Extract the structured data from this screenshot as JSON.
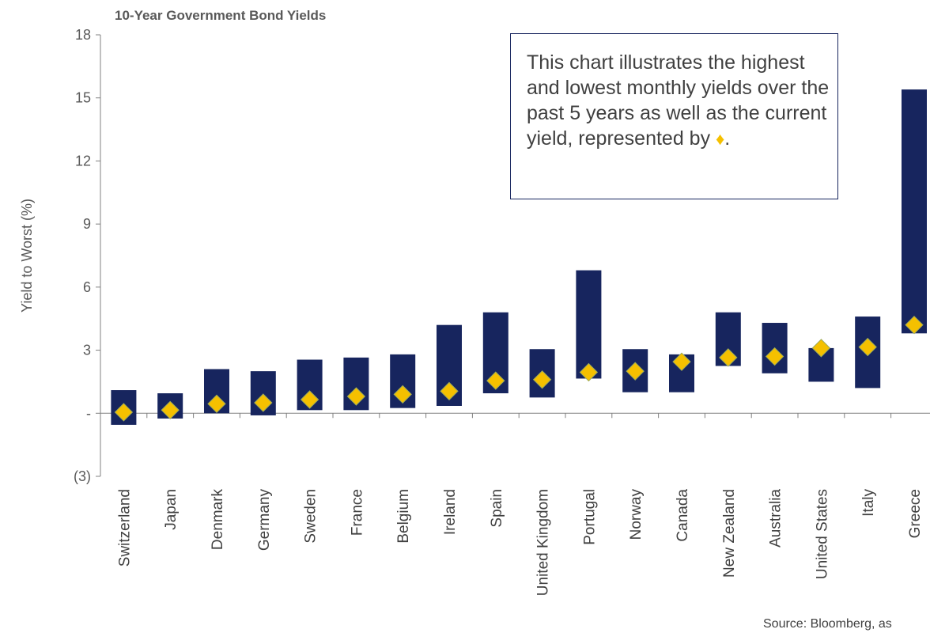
{
  "chart_data": {
    "type": "bar",
    "title": "10-Year Government Bond Yields",
    "ylabel": "Yield to Worst (%)",
    "xlabel": "",
    "ylim": [
      -3,
      18
    ],
    "yticks": [
      18,
      15,
      12,
      9,
      6,
      3,
      0,
      -3
    ],
    "ytick_labels": [
      "18",
      "15",
      "12",
      "9",
      "6",
      "3",
      "-",
      "(3)"
    ],
    "grid": false,
    "categories": [
      "Switzerland",
      "Japan",
      "Denmark",
      "Germany",
      "Sweden",
      "France",
      "Belgium",
      "Ireland",
      "Spain",
      "United Kingdom",
      "Portugal",
      "Norway",
      "Canada",
      "New Zealand",
      "Australia",
      "United States",
      "Italy",
      "Greece"
    ],
    "series": [
      {
        "kind": "range_high",
        "values": [
          1.1,
          0.95,
          2.1,
          2.0,
          2.55,
          2.65,
          2.8,
          4.2,
          4.8,
          3.05,
          6.8,
          3.05,
          2.8,
          4.8,
          4.3,
          3.1,
          4.6,
          15.4
        ]
      },
      {
        "kind": "range_low",
        "values": [
          -0.55,
          -0.25,
          0.0,
          -0.1,
          0.15,
          0.15,
          0.25,
          0.35,
          0.95,
          0.75,
          1.65,
          1.0,
          1.0,
          2.25,
          1.9,
          1.5,
          1.2,
          3.8
        ]
      },
      {
        "kind": "current",
        "values": [
          0.05,
          0.15,
          0.45,
          0.5,
          0.65,
          0.8,
          0.9,
          1.05,
          1.55,
          1.6,
          1.95,
          2.0,
          2.45,
          2.65,
          2.7,
          3.1,
          3.15,
          4.2
        ]
      }
    ],
    "colors": {
      "bar": "#17255E",
      "diamond": "#F5C000",
      "axis": "#808080",
      "text": "#595959"
    }
  },
  "note": {
    "text": "This chart illustrates the highest and lowest monthly yields over the past 5 years as well as the current yield, represented by",
    "marker": "♦",
    "end": "."
  },
  "source": "Source: Bloomberg, as"
}
